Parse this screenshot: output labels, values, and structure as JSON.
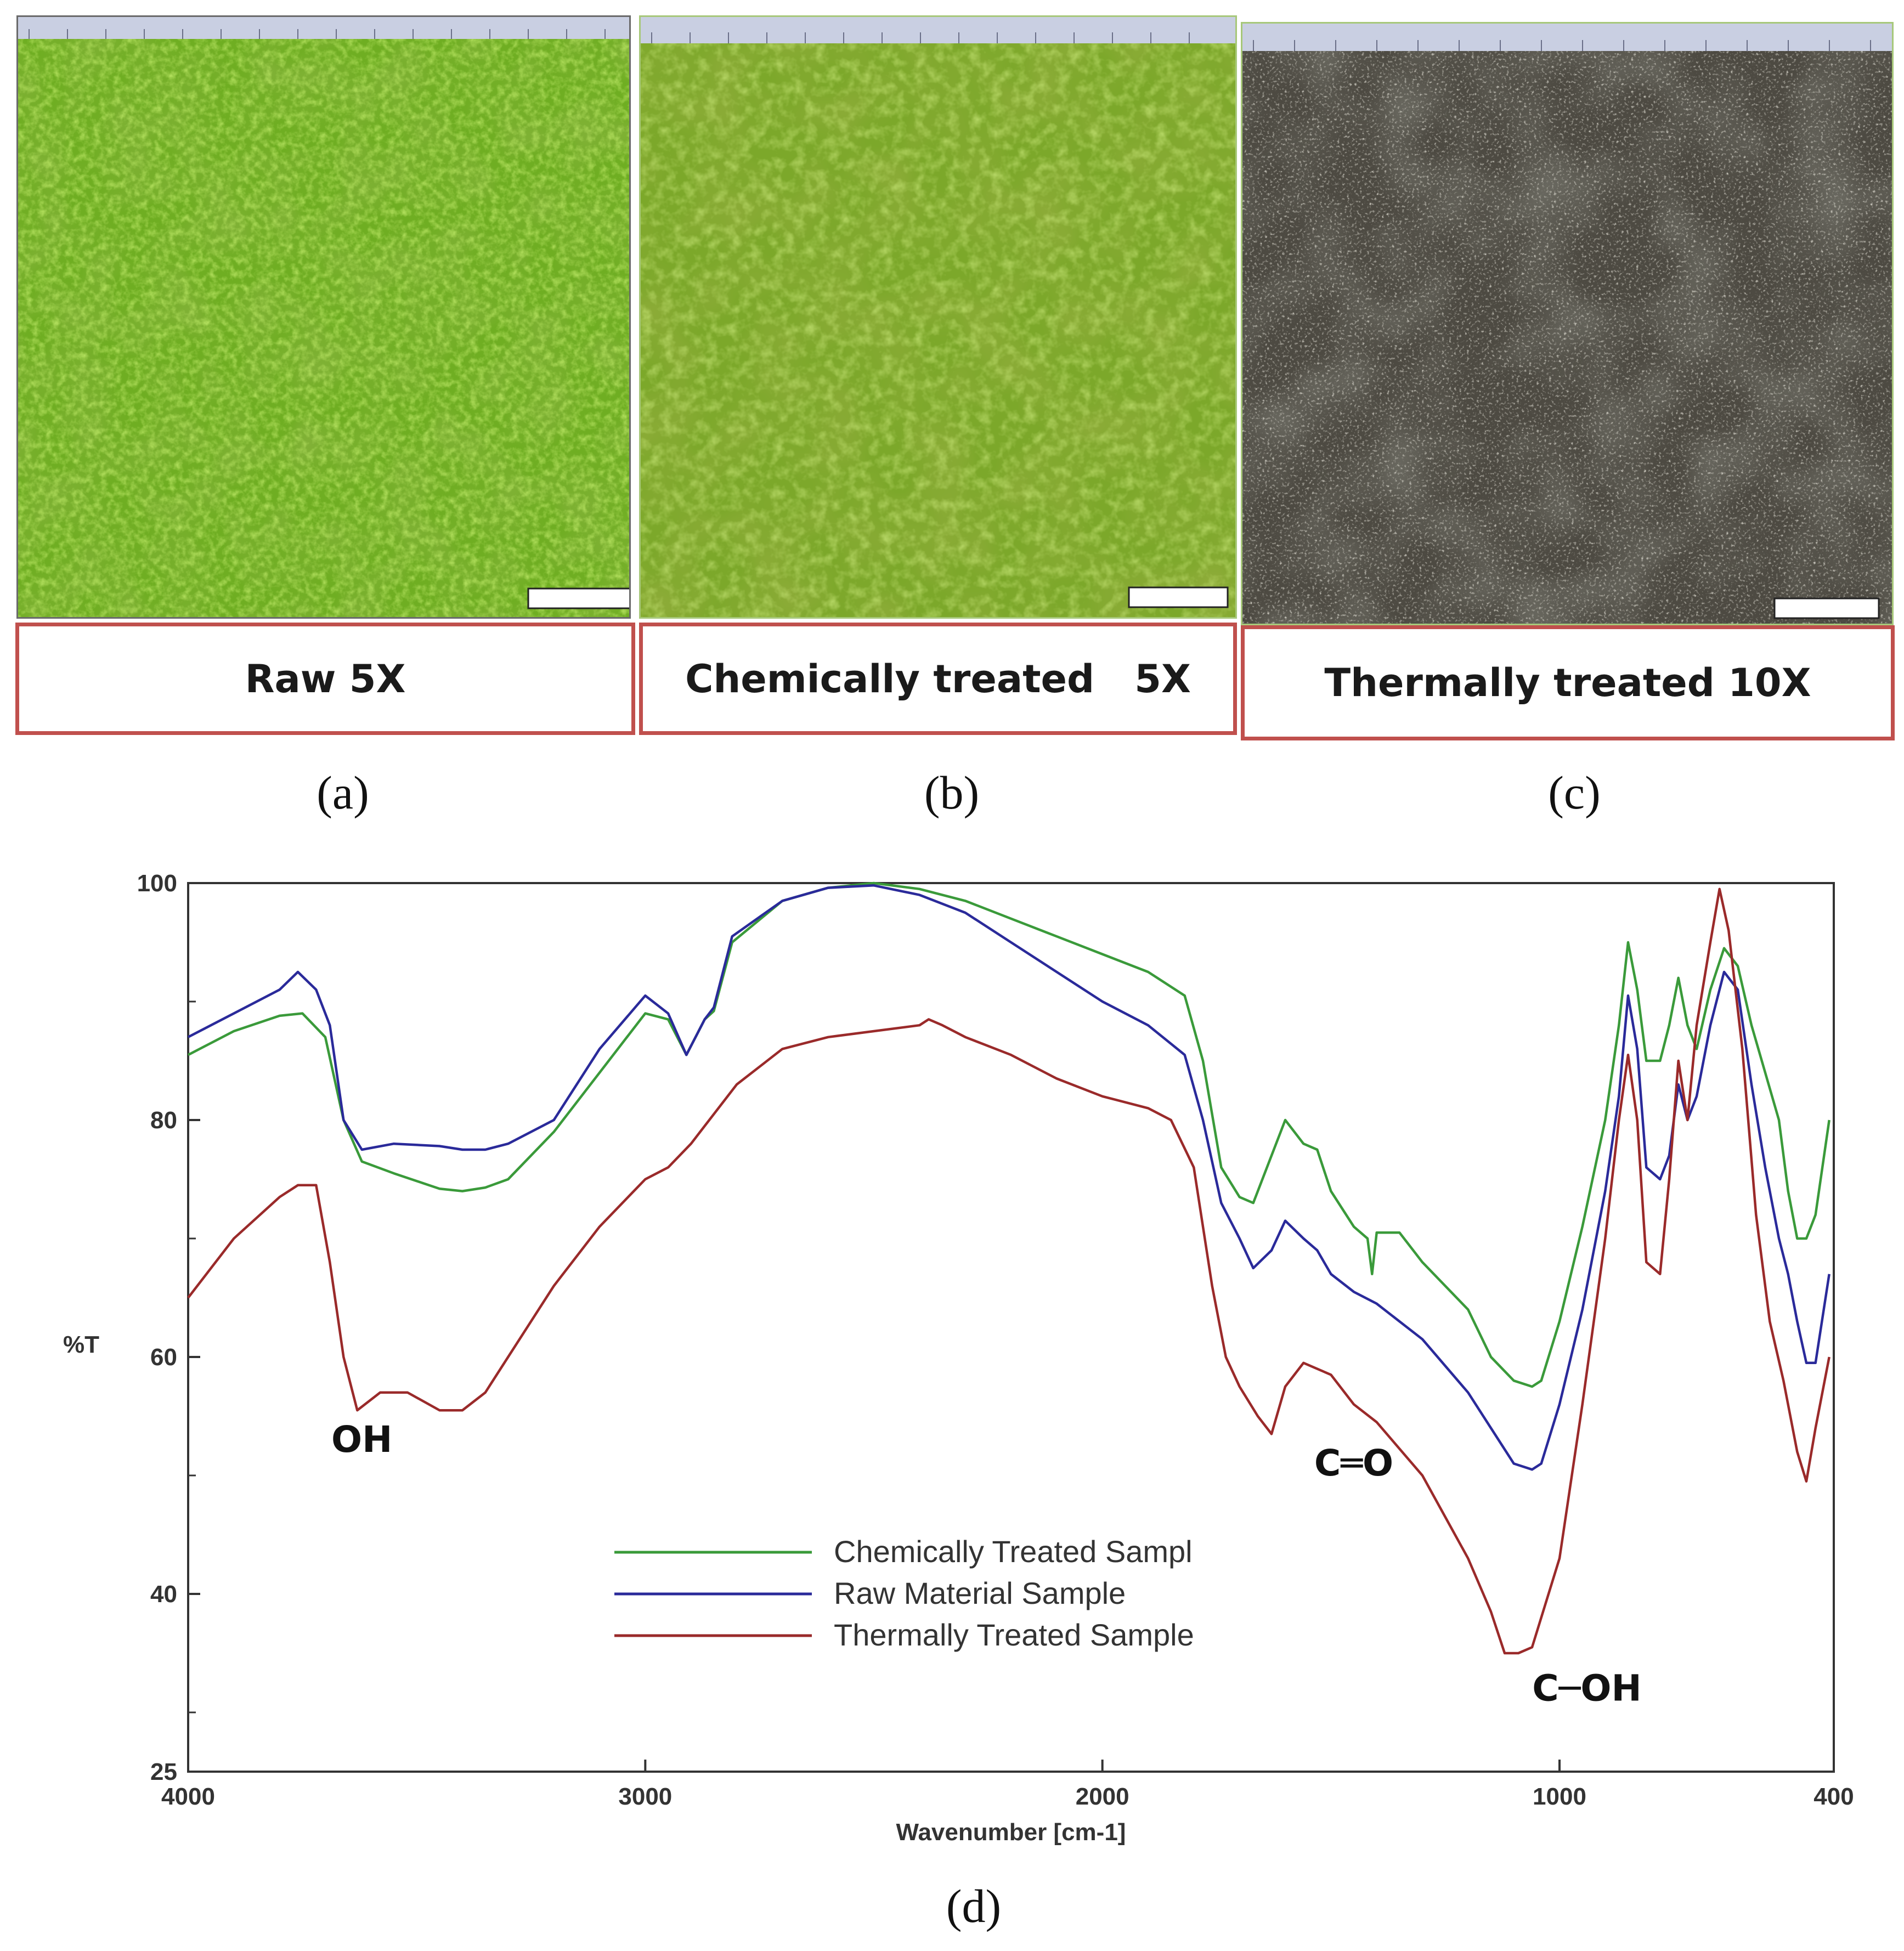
{
  "panels": [
    {
      "id": "a",
      "caption": "Raw 5X",
      "sublabel": "(a)"
    },
    {
      "id": "b",
      "caption": "Chemically treated   5X",
      "sublabel": "(b)"
    },
    {
      "id": "c",
      "caption": "Thermally treated 10X",
      "sublabel": "(c)"
    }
  ],
  "chart_sublabel": "(d)",
  "chart_data": {
    "type": "line",
    "xlabel": "Wavenumber [cm-1]",
    "ylabel": "%T",
    "xlim": [
      4000,
      400
    ],
    "ylim": [
      25,
      100
    ],
    "x_ticks": [
      4000,
      3000,
      2000,
      1000,
      400
    ],
    "y_ticks": [
      100,
      80,
      60,
      40,
      25
    ],
    "grid": false,
    "legend_position": "center-bottom",
    "annotations": [
      {
        "text": "OH",
        "x": 3620,
        "y": 52
      },
      {
        "text": "C═O",
        "x": 1450,
        "y": 50
      },
      {
        "text": "C─OH",
        "x": 940,
        "y": 31
      }
    ],
    "series": [
      {
        "name": "Chemically Treated Sampl",
        "color": "#3a9a3a",
        "points": [
          [
            4000,
            85.5
          ],
          [
            3900,
            87.5
          ],
          [
            3800,
            88.8
          ],
          [
            3750,
            89
          ],
          [
            3700,
            87
          ],
          [
            3660,
            80
          ],
          [
            3620,
            76.5
          ],
          [
            3550,
            75.5
          ],
          [
            3450,
            74.2
          ],
          [
            3400,
            74
          ],
          [
            3350,
            74.3
          ],
          [
            3300,
            75
          ],
          [
            3200,
            79
          ],
          [
            3100,
            84
          ],
          [
            3000,
            89
          ],
          [
            2950,
            88.5
          ],
          [
            2910,
            85.5
          ],
          [
            2870,
            88.5
          ],
          [
            2850,
            89.2
          ],
          [
            2810,
            95
          ],
          [
            2700,
            98.5
          ],
          [
            2600,
            99.6
          ],
          [
            2500,
            100
          ],
          [
            2400,
            99.5
          ],
          [
            2300,
            98.5
          ],
          [
            2200,
            97
          ],
          [
            2100,
            95.5
          ],
          [
            2000,
            94
          ],
          [
            1900,
            92.5
          ],
          [
            1820,
            90.5
          ],
          [
            1780,
            85
          ],
          [
            1740,
            76
          ],
          [
            1700,
            73.5
          ],
          [
            1670,
            73
          ],
          [
            1630,
            77
          ],
          [
            1600,
            80
          ],
          [
            1560,
            78
          ],
          [
            1530,
            77.5
          ],
          [
            1500,
            74
          ],
          [
            1450,
            71
          ],
          [
            1420,
            70
          ],
          [
            1410,
            67
          ],
          [
            1400,
            70.5
          ],
          [
            1350,
            70.5
          ],
          [
            1300,
            68
          ],
          [
            1200,
            64
          ],
          [
            1150,
            60
          ],
          [
            1100,
            58
          ],
          [
            1060,
            57.5
          ],
          [
            1040,
            58
          ],
          [
            1000,
            63
          ],
          [
            950,
            71
          ],
          [
            900,
            80
          ],
          [
            870,
            88
          ],
          [
            850,
            95
          ],
          [
            830,
            91
          ],
          [
            810,
            85
          ],
          [
            780,
            85
          ],
          [
            760,
            88
          ],
          [
            740,
            92
          ],
          [
            720,
            88
          ],
          [
            700,
            86
          ],
          [
            670,
            91
          ],
          [
            640,
            94.5
          ],
          [
            610,
            93
          ],
          [
            580,
            88
          ],
          [
            550,
            84
          ],
          [
            520,
            80
          ],
          [
            500,
            74
          ],
          [
            480,
            70
          ],
          [
            460,
            70
          ],
          [
            440,
            72
          ],
          [
            410,
            80
          ]
        ]
      },
      {
        "name": "Raw Material Sample",
        "color": "#2a2a9a",
        "points": [
          [
            4000,
            87
          ],
          [
            3900,
            89
          ],
          [
            3800,
            91
          ],
          [
            3760,
            92.5
          ],
          [
            3720,
            91
          ],
          [
            3690,
            88
          ],
          [
            3660,
            80
          ],
          [
            3620,
            77.5
          ],
          [
            3550,
            78
          ],
          [
            3450,
            77.8
          ],
          [
            3400,
            77.5
          ],
          [
            3350,
            77.5
          ],
          [
            3300,
            78
          ],
          [
            3200,
            80
          ],
          [
            3100,
            86
          ],
          [
            3000,
            90.5
          ],
          [
            2950,
            89
          ],
          [
            2910,
            85.5
          ],
          [
            2870,
            88.5
          ],
          [
            2850,
            89.5
          ],
          [
            2810,
            95.5
          ],
          [
            2700,
            98.5
          ],
          [
            2600,
            99.6
          ],
          [
            2500,
            99.8
          ],
          [
            2400,
            99
          ],
          [
            2300,
            97.5
          ],
          [
            2200,
            95
          ],
          [
            2100,
            92.5
          ],
          [
            2000,
            90
          ],
          [
            1900,
            88
          ],
          [
            1820,
            85.5
          ],
          [
            1780,
            80
          ],
          [
            1740,
            73
          ],
          [
            1700,
            70
          ],
          [
            1670,
            67.5
          ],
          [
            1630,
            69
          ],
          [
            1600,
            71.5
          ],
          [
            1560,
            70
          ],
          [
            1530,
            69
          ],
          [
            1500,
            67
          ],
          [
            1450,
            65.5
          ],
          [
            1400,
            64.5
          ],
          [
            1350,
            63
          ],
          [
            1300,
            61.5
          ],
          [
            1200,
            57
          ],
          [
            1150,
            54
          ],
          [
            1100,
            51
          ],
          [
            1060,
            50.5
          ],
          [
            1040,
            51
          ],
          [
            1000,
            56
          ],
          [
            950,
            64
          ],
          [
            900,
            74
          ],
          [
            870,
            82
          ],
          [
            850,
            90.5
          ],
          [
            830,
            86
          ],
          [
            810,
            76
          ],
          [
            780,
            75
          ],
          [
            760,
            77
          ],
          [
            740,
            83
          ],
          [
            720,
            80
          ],
          [
            700,
            82
          ],
          [
            670,
            88
          ],
          [
            640,
            92.5
          ],
          [
            610,
            91
          ],
          [
            580,
            83
          ],
          [
            550,
            76
          ],
          [
            520,
            70
          ],
          [
            500,
            67
          ],
          [
            480,
            63
          ],
          [
            460,
            59.5
          ],
          [
            440,
            59.5
          ],
          [
            410,
            67
          ]
        ]
      },
      {
        "name": "Thermally Treated Sample",
        "color": "#9a2a2a",
        "points": [
          [
            4000,
            65
          ],
          [
            3900,
            70
          ],
          [
            3800,
            73.5
          ],
          [
            3760,
            74.5
          ],
          [
            3720,
            74.5
          ],
          [
            3690,
            68
          ],
          [
            3660,
            60
          ],
          [
            3630,
            55.5
          ],
          [
            3580,
            57
          ],
          [
            3520,
            57
          ],
          [
            3450,
            55.5
          ],
          [
            3400,
            55.5
          ],
          [
            3350,
            57
          ],
          [
            3300,
            60
          ],
          [
            3200,
            66
          ],
          [
            3100,
            71
          ],
          [
            3000,
            75
          ],
          [
            2950,
            76
          ],
          [
            2900,
            78
          ],
          [
            2800,
            83
          ],
          [
            2700,
            86
          ],
          [
            2600,
            87
          ],
          [
            2500,
            87.5
          ],
          [
            2400,
            88
          ],
          [
            2380,
            88.5
          ],
          [
            2350,
            88
          ],
          [
            2300,
            87
          ],
          [
            2200,
            85.5
          ],
          [
            2100,
            83.5
          ],
          [
            2000,
            82
          ],
          [
            1900,
            81
          ],
          [
            1850,
            80
          ],
          [
            1800,
            76
          ],
          [
            1760,
            66
          ],
          [
            1730,
            60
          ],
          [
            1700,
            57.5
          ],
          [
            1660,
            55
          ],
          [
            1630,
            53.5
          ],
          [
            1600,
            57.5
          ],
          [
            1560,
            59.5
          ],
          [
            1500,
            58.5
          ],
          [
            1450,
            56
          ],
          [
            1400,
            54.5
          ],
          [
            1300,
            50
          ],
          [
            1200,
            43
          ],
          [
            1150,
            38.5
          ],
          [
            1120,
            35
          ],
          [
            1090,
            35
          ],
          [
            1060,
            35.5
          ],
          [
            1000,
            43
          ],
          [
            950,
            56
          ],
          [
            900,
            70
          ],
          [
            870,
            80
          ],
          [
            850,
            85.5
          ],
          [
            830,
            80
          ],
          [
            810,
            68
          ],
          [
            780,
            67
          ],
          [
            760,
            75
          ],
          [
            740,
            85
          ],
          [
            720,
            80
          ],
          [
            700,
            88
          ],
          [
            670,
            95
          ],
          [
            650,
            99.5
          ],
          [
            630,
            96
          ],
          [
            600,
            86
          ],
          [
            570,
            72
          ],
          [
            540,
            63
          ],
          [
            510,
            58
          ],
          [
            480,
            52
          ],
          [
            460,
            49.5
          ],
          [
            440,
            54
          ],
          [
            410,
            60
          ]
        ]
      }
    ]
  }
}
